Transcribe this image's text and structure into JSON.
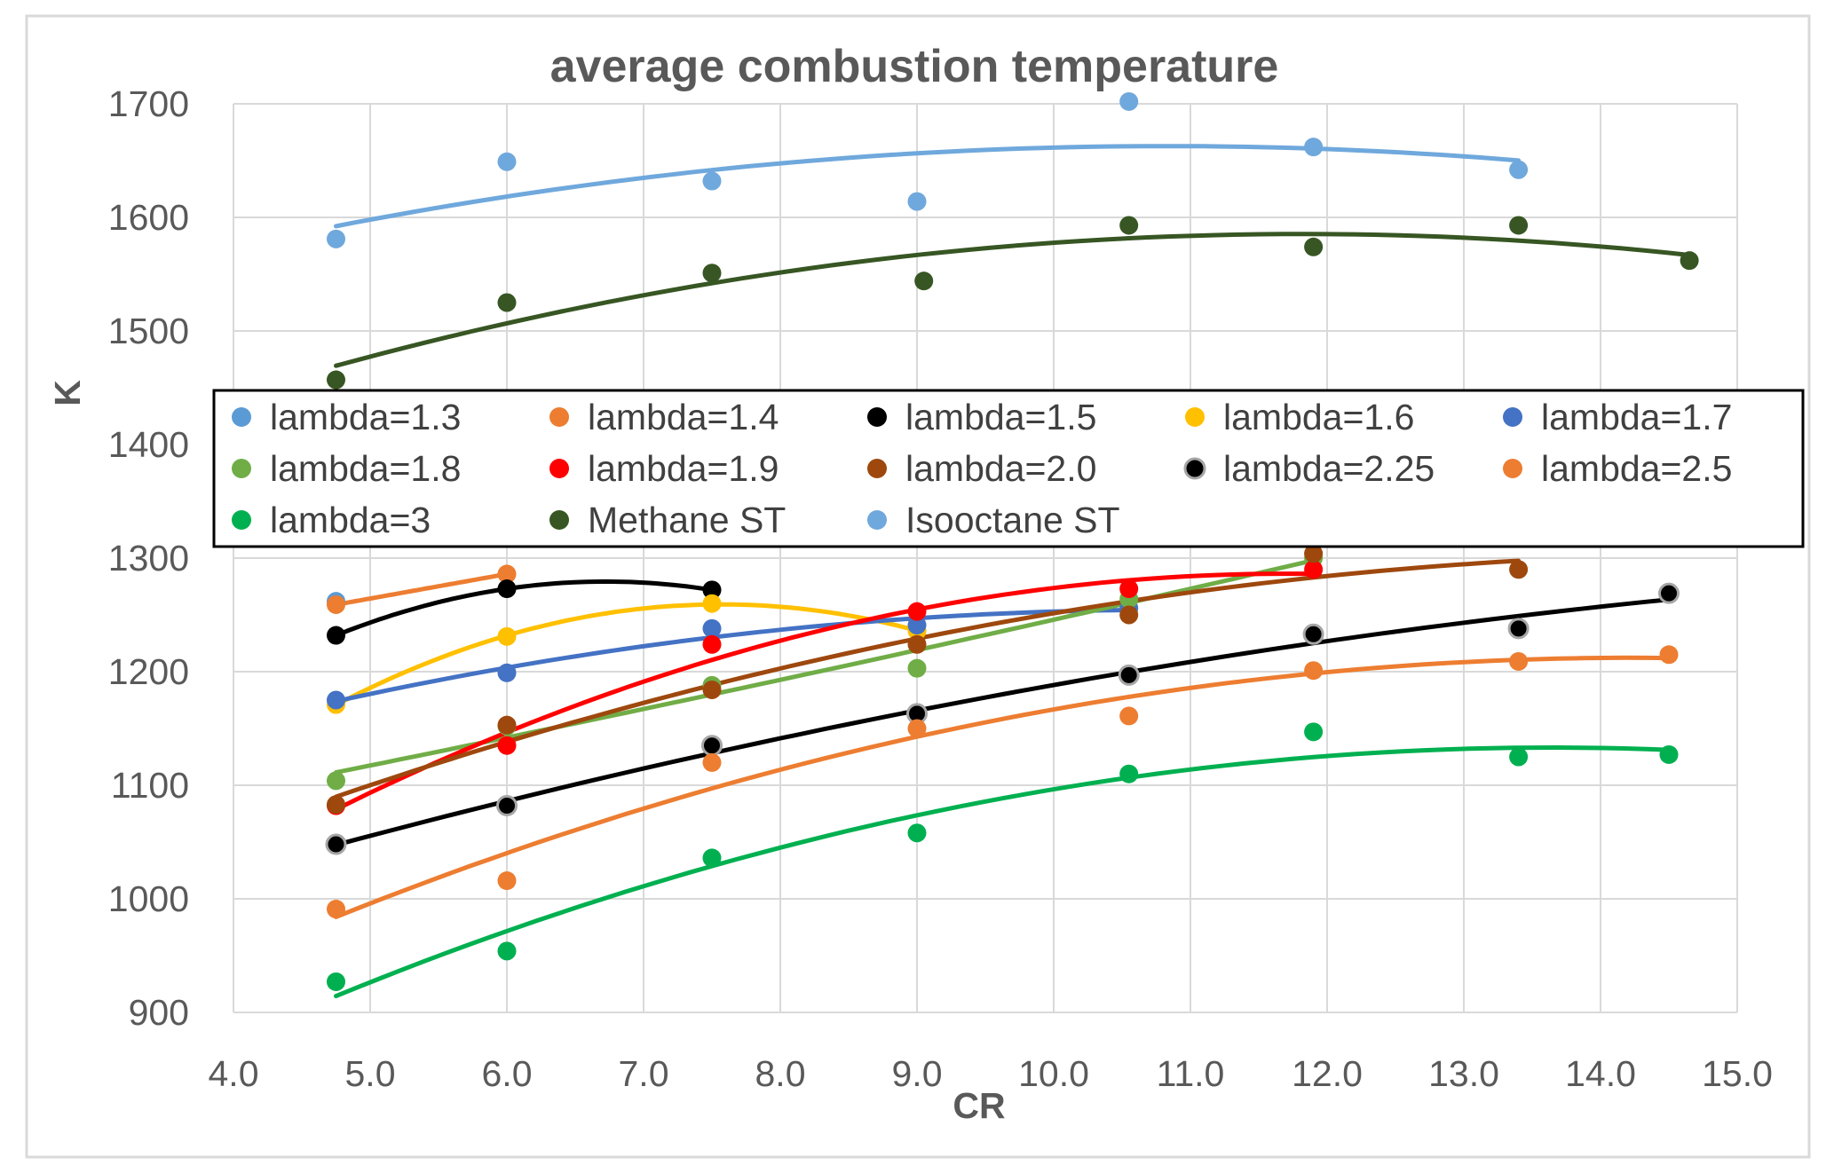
{
  "chart_data": {
    "type": "scatter",
    "title": "average combustion temperature",
    "xlabel": "CR",
    "ylabel": "K",
    "xlim": [
      4.0,
      15.0
    ],
    "ylim": [
      900,
      1700
    ],
    "xticks": [
      "4.0",
      "5.0",
      "6.0",
      "7.0",
      "8.0",
      "9.0",
      "10.0",
      "11.0",
      "12.0",
      "13.0",
      "14.0",
      "15.0"
    ],
    "yticks": [
      "900",
      "1000",
      "1100",
      "1200",
      "1300",
      "1400",
      "1500",
      "1600",
      "1700"
    ],
    "grid": "vertical and horizontal major gridlines",
    "legend_position": "middle, boxed, 3 rows",
    "trendlines": "polynomial fit per series",
    "series": [
      {
        "name": "lambda=1.3",
        "color": "#5B9BD5",
        "marker": "circle",
        "x": [
          4.75
        ],
        "y": [
          1262
        ]
      },
      {
        "name": "lambda=1.4",
        "color": "#ED7D31",
        "marker": "circle",
        "x": [
          4.75,
          6.0
        ],
        "y": [
          1259,
          1286
        ]
      },
      {
        "name": "lambda=1.5",
        "color": "#000000",
        "marker": "circle",
        "x": [
          4.75,
          6.0,
          7.5
        ],
        "y": [
          1232,
          1273,
          1272
        ]
      },
      {
        "name": "lambda=1.6",
        "color": "#FFC000",
        "marker": "circle",
        "x": [
          4.75,
          6.0,
          7.5,
          9.0
        ],
        "y": [
          1171,
          1231,
          1260,
          1236
        ]
      },
      {
        "name": "lambda=1.7",
        "color": "#4472C4",
        "marker": "circle",
        "x": [
          4.75,
          6.0,
          7.5,
          9.0,
          10.55
        ],
        "y": [
          1175,
          1199,
          1238,
          1241,
          1256
        ]
      },
      {
        "name": "lambda=1.8",
        "color": "#70AD47",
        "marker": "circle",
        "x": [
          4.75,
          6.0,
          7.5,
          9.0,
          10.55,
          11.9
        ],
        "y": [
          1104,
          1152,
          1188,
          1203,
          1264,
          1300
        ]
      },
      {
        "name": "lambda=1.9",
        "color": "#FF0000",
        "marker": "circle",
        "x": [
          4.75,
          6.0,
          7.5,
          9.0,
          10.55,
          11.9
        ],
        "y": [
          1082,
          1135,
          1224,
          1253,
          1273,
          1290
        ]
      },
      {
        "name": "lambda=2.0",
        "color": "#9E480E",
        "marker": "circle",
        "x": [
          4.75,
          6.0,
          7.5,
          9.0,
          10.55,
          11.9,
          13.4
        ],
        "y": [
          1083,
          1153,
          1184,
          1224,
          1250,
          1304,
          1290
        ]
      },
      {
        "name": "lambda=2.25",
        "color": "#000000",
        "marker": "circle-with-gray-edge",
        "x": [
          4.75,
          6.0,
          7.5,
          9.0,
          10.55,
          11.9,
          13.4,
          14.5
        ],
        "y": [
          1048,
          1082,
          1135,
          1163,
          1197,
          1233,
          1238,
          1269
        ]
      },
      {
        "name": "lambda=2.5",
        "color": "#ED7D31",
        "marker": "circle",
        "x": [
          4.75,
          6.0,
          7.5,
          9.0,
          10.55,
          11.9,
          13.4,
          14.5
        ],
        "y": [
          991,
          1016,
          1120,
          1150,
          1161,
          1201,
          1209,
          1215
        ]
      },
      {
        "name": "lambda=3",
        "color": "#00B050",
        "marker": "circle",
        "x": [
          4.75,
          6.0,
          7.5,
          9.0,
          10.55,
          11.9,
          13.4,
          14.5
        ],
        "y": [
          927,
          954,
          1036,
          1058,
          1110,
          1147,
          1125,
          1127
        ]
      },
      {
        "name": "Methane ST",
        "color": "#375623",
        "marker": "circle",
        "x": [
          4.75,
          6.0,
          7.5,
          9.05,
          10.55,
          11.9,
          13.4,
          14.65
        ],
        "y": [
          1457,
          1525,
          1551,
          1544,
          1593,
          1574,
          1593,
          1562
        ]
      },
      {
        "name": "Isooctane ST",
        "color": "#6FA8DC",
        "marker": "circle",
        "x": [
          4.75,
          6.0,
          7.5,
          9.0,
          10.55,
          11.9,
          13.4
        ],
        "y": [
          1581,
          1649,
          1632,
          1614,
          1702,
          1662,
          1642
        ]
      }
    ]
  }
}
